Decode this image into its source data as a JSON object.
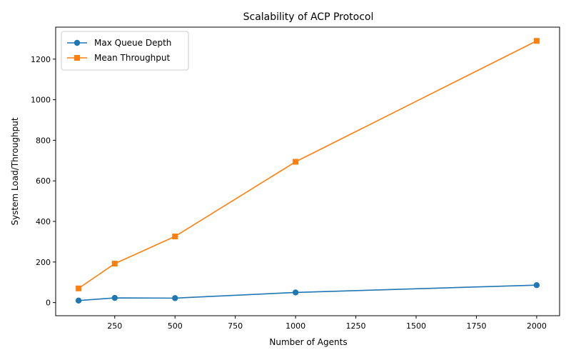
{
  "chart_data": {
    "type": "line",
    "title": "Scalability of ACP Protocol",
    "xlabel": "Number of Agents",
    "ylabel": "System Load/Throughput",
    "x": [
      100,
      250,
      500,
      1000,
      2000
    ],
    "xlim": [
      5,
      2095
    ],
    "ylim": [
      -64.7,
      1357.7
    ],
    "xticks": [
      250,
      500,
      750,
      1000,
      1250,
      1500,
      1750,
      2000
    ],
    "yticks": [
      0,
      200,
      400,
      600,
      800,
      1000,
      1200
    ],
    "grid": false,
    "legend_position": "top-left",
    "series": [
      {
        "name": "Max Queue Depth",
        "values": [
          10,
          23,
          22,
          50,
          86
        ],
        "color": "#1f77b4",
        "marker": "circle"
      },
      {
        "name": "Mean Throughput",
        "values": [
          70,
          192,
          326,
          694,
          1290
        ],
        "color": "#ff7f0e",
        "marker": "square"
      }
    ]
  }
}
